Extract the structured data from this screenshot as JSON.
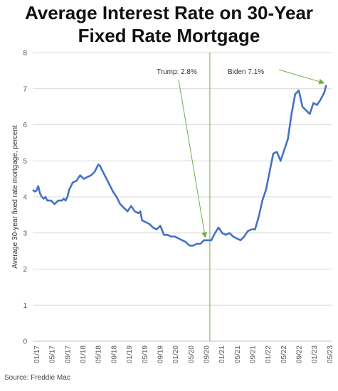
{
  "title_line1": "Average Interest Rate on 30-Year",
  "title_line2": "Fixed Rate Mortgage",
  "source": "Source: Freddie Mac",
  "chart_data": {
    "type": "line",
    "title": "Average Interest Rate on 30-Year Fixed Rate Mortgage",
    "xlabel": "",
    "ylabel": "Average 30-year fixed rate mortgage, percent",
    "ylim": [
      0,
      8
    ],
    "y_ticks": [
      "0",
      "1",
      "2",
      "3",
      "4",
      "5",
      "6",
      "7",
      "8"
    ],
    "x_ticks": [
      "01/17",
      "05/17",
      "09/17",
      "01/18",
      "05/18",
      "09/18",
      "01/19",
      "05/19",
      "09/19",
      "01/20",
      "05/20",
      "09/20",
      "01/21",
      "05/21",
      "09/21",
      "01/22",
      "05/22",
      "09/22",
      "01/23",
      "05/23"
    ],
    "grid": true,
    "line_color": "#4472c4",
    "annotation_color": "#70ad47",
    "vline_at": 48.6,
    "annotations": [
      {
        "text": "Trump: 2.8%",
        "x": 48.1,
        "y": 2.8
      },
      {
        "text": "Biden 7.1%",
        "x": 80.5,
        "y": 7.1
      }
    ],
    "series": [
      {
        "points": [
          [
            0,
            4.2
          ],
          [
            0.5,
            4.15
          ],
          [
            1,
            4.17
          ],
          [
            1.5,
            4.3
          ],
          [
            2,
            4.1
          ],
          [
            2.5,
            4.0
          ],
          [
            3,
            3.95
          ],
          [
            3.5,
            4.0
          ],
          [
            4,
            3.9
          ],
          [
            5,
            3.9
          ],
          [
            6,
            3.8
          ],
          [
            7,
            3.9
          ],
          [
            8,
            3.9
          ],
          [
            8.5,
            3.95
          ],
          [
            9,
            3.9
          ],
          [
            9.5,
            4.0
          ],
          [
            10,
            4.2
          ],
          [
            11,
            4.4
          ],
          [
            12,
            4.45
          ],
          [
            13,
            4.6
          ],
          [
            14,
            4.5
          ],
          [
            15,
            4.55
          ],
          [
            16,
            4.6
          ],
          [
            17,
            4.7
          ],
          [
            18,
            4.9
          ],
          [
            18.5,
            4.85
          ],
          [
            19,
            4.75
          ],
          [
            20,
            4.55
          ],
          [
            21,
            4.35
          ],
          [
            22,
            4.15
          ],
          [
            23,
            4.0
          ],
          [
            24,
            3.8
          ],
          [
            25,
            3.7
          ],
          [
            26,
            3.6
          ],
          [
            27,
            3.75
          ],
          [
            28,
            3.6
          ],
          [
            29,
            3.55
          ],
          [
            29.5,
            3.6
          ],
          [
            30,
            3.35
          ],
          [
            31,
            3.3
          ],
          [
            32,
            3.25
          ],
          [
            33,
            3.15
          ],
          [
            34,
            3.1
          ],
          [
            35,
            3.2
          ],
          [
            36,
            2.95
          ],
          [
            37,
            2.95
          ],
          [
            38,
            2.9
          ],
          [
            39,
            2.9
          ],
          [
            40,
            2.85
          ],
          [
            41,
            2.8
          ],
          [
            42,
            2.75
          ],
          [
            43,
            2.65
          ],
          [
            44,
            2.65
          ],
          [
            45,
            2.7
          ],
          [
            46,
            2.7
          ],
          [
            47,
            2.8
          ],
          [
            48,
            2.8
          ],
          [
            49,
            2.8
          ],
          [
            50,
            3.0
          ],
          [
            51,
            3.15
          ],
          [
            52,
            3.0
          ],
          [
            53,
            2.95
          ],
          [
            54,
            3.0
          ],
          [
            55,
            2.9
          ],
          [
            56,
            2.85
          ],
          [
            57,
            2.8
          ],
          [
            58,
            2.9
          ],
          [
            59,
            3.05
          ],
          [
            60,
            3.1
          ],
          [
            61,
            3.1
          ],
          [
            62,
            3.45
          ],
          [
            63,
            3.9
          ],
          [
            64,
            4.2
          ],
          [
            65,
            4.7
          ],
          [
            66,
            5.2
          ],
          [
            67,
            5.25
          ],
          [
            68,
            5.0
          ],
          [
            69,
            5.3
          ],
          [
            70,
            5.6
          ],
          [
            71,
            6.3
          ],
          [
            72,
            6.85
          ],
          [
            73,
            6.95
          ],
          [
            74,
            6.5
          ],
          [
            75,
            6.4
          ],
          [
            76,
            6.3
          ],
          [
            77,
            6.6
          ],
          [
            78,
            6.55
          ],
          [
            79,
            6.7
          ],
          [
            80,
            6.9
          ],
          [
            80.5,
            7.1
          ]
        ]
      }
    ]
  }
}
